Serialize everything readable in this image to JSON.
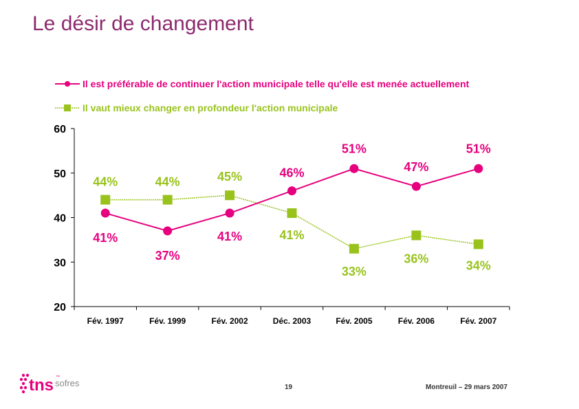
{
  "title": "Le désir de changement",
  "colors": {
    "title": "#8c2a6e",
    "series_continue": "#e6007e",
    "series_change": "#99c31c",
    "axis": "#000000"
  },
  "legend": {
    "continue": "Il est préférable de continuer l'action municipale telle qu'elle est menée actuellement",
    "change": "Il vaut mieux changer en profondeur l'action municipale"
  },
  "chart_data": {
    "type": "line",
    "title": "Le désir de changement",
    "xlabel": "",
    "ylabel": "",
    "ylim": [
      20,
      60
    ],
    "yticks": [
      20,
      30,
      40,
      50,
      60
    ],
    "grid": false,
    "legend_position": "top",
    "categories": [
      "Fév. 1997",
      "Fév. 1999",
      "Fév. 2002",
      "Déc. 2003",
      "Fév. 2005",
      "Fév. 2006",
      "Fév. 2007"
    ],
    "series": [
      {
        "name": "Il est préférable de continuer l'action municipale telle qu'elle est menée actuellement",
        "marker": "circle",
        "color": "#e6007e",
        "values": [
          41,
          37,
          41,
          46,
          51,
          47,
          51
        ],
        "labels": [
          "41%",
          "37%",
          "41%",
          "46%",
          "51%",
          "47%",
          "51%"
        ]
      },
      {
        "name": "Il vaut mieux changer en profondeur l'action municipale",
        "marker": "square",
        "color": "#99c31c",
        "values": [
          44,
          44,
          45,
          41,
          33,
          36,
          34
        ],
        "labels": [
          "44%",
          "44%",
          "45%",
          "41%",
          "33%",
          "36%",
          "34%"
        ]
      }
    ]
  },
  "footer": {
    "page_number": "19",
    "place_date": "Montreuil – 29 mars 2007"
  },
  "logo": {
    "main": "tns",
    "sub": "sofres",
    "tm": "™"
  }
}
